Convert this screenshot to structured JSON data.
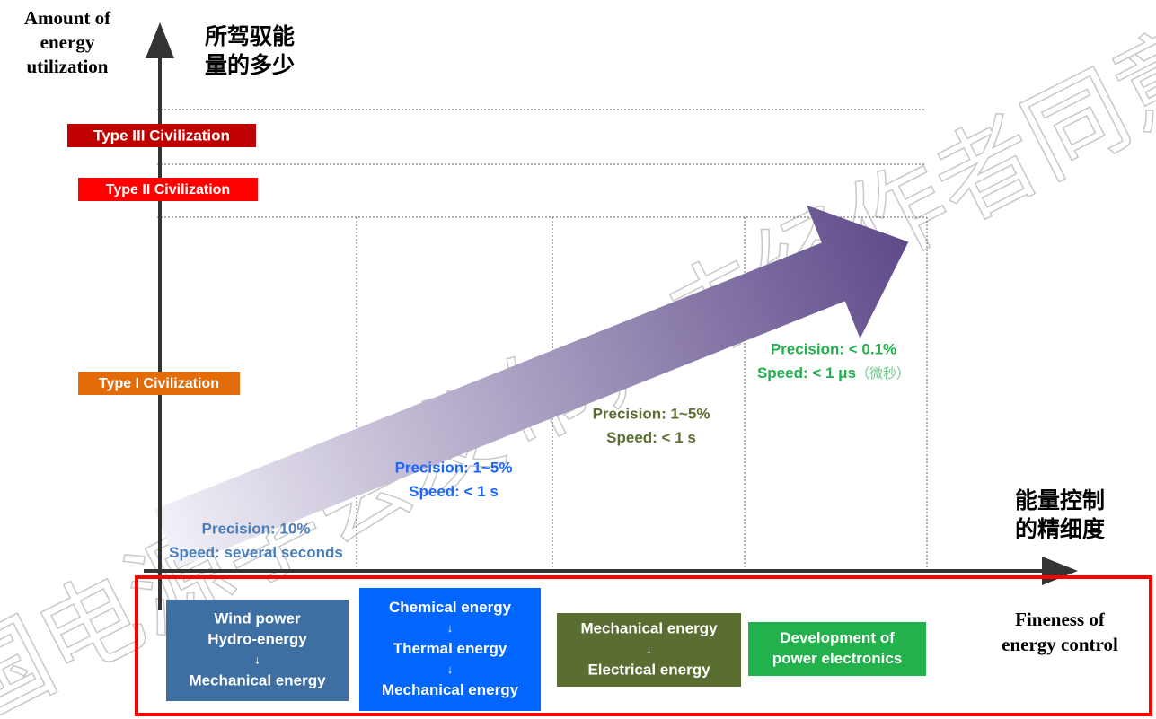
{
  "y_axis": {
    "label_en": [
      "Amount of",
      "energy",
      "utilization"
    ],
    "label_zh": [
      "所驾驭能",
      "量的多少"
    ]
  },
  "x_axis": {
    "label_zh": [
      "能量控制",
      "的精细度"
    ],
    "label_en": [
      "Fineness of",
      "energy control"
    ]
  },
  "levels": [
    "Type III Civilization",
    "Type II Civilization",
    "Type I Civilization"
  ],
  "stages": [
    {
      "precision": "Precision: 10%",
      "speed": "Speed: several seconds",
      "box": [
        "Wind power",
        "Hydro-energy",
        "↓",
        "Mechanical energy"
      ]
    },
    {
      "precision": "Precision: 1~5%",
      "speed": "Speed: < 1 s",
      "box": [
        "Chemical energy",
        "↓",
        "Thermal energy",
        "↓",
        "Mechanical energy"
      ]
    },
    {
      "precision": "Precision: 1~5%",
      "speed": "Speed: < 1 s",
      "box": [
        "Mechanical energy",
        "↓",
        "Electrical energy"
      ]
    },
    {
      "precision": "Precision: < 0.1%",
      "speed": "Speed: < 1 μs",
      "speed_note": "（微秒）",
      "box": [
        "Development of",
        "power electronics"
      ]
    }
  ],
  "watermark": "国电源学会发布，未经作者同意"
}
